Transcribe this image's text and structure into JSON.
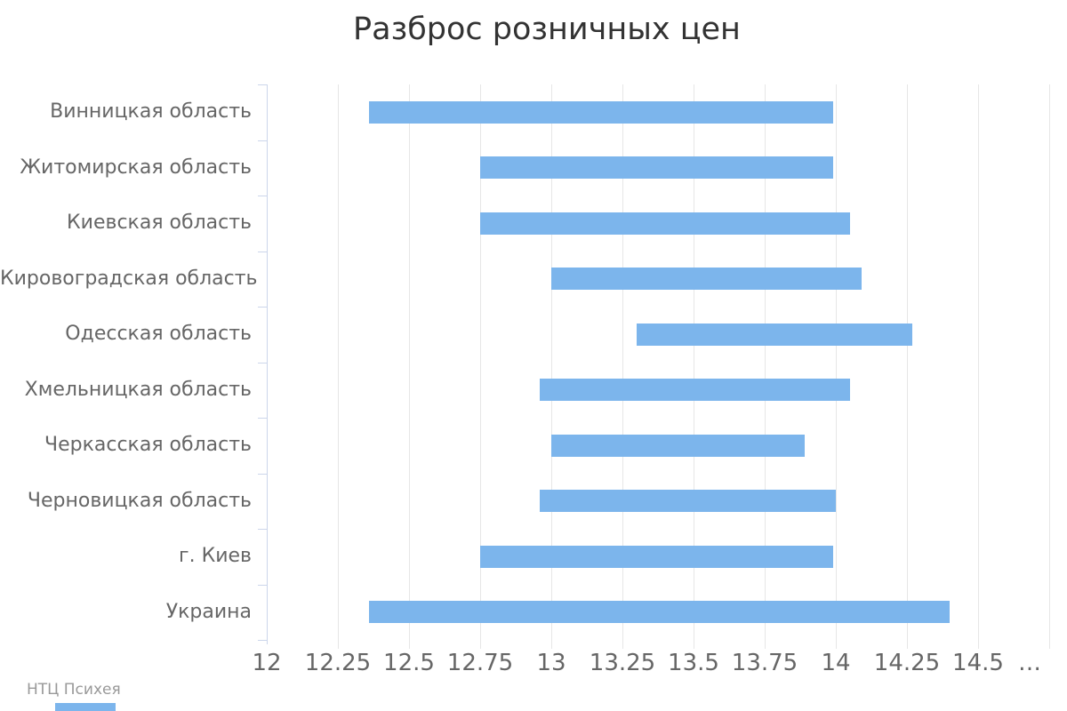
{
  "chart_data": {
    "type": "bar",
    "subtype": "horizontal-range (columnrange)",
    "title": "Разброс розничных цен",
    "categories": [
      "Винницкая область",
      "Житомирская область",
      "Киевская область",
      "Кировоградская область",
      "Одесская область",
      "Хмельницкая область",
      "Черкасская область",
      "Черновицкая область",
      "г. Киев",
      "Украина"
    ],
    "ranges": [
      [
        12.36,
        13.99
      ],
      [
        12.75,
        13.99
      ],
      [
        12.75,
        14.05
      ],
      [
        13.0,
        14.09
      ],
      [
        13.3,
        14.27
      ],
      [
        12.96,
        14.05
      ],
      [
        13.0,
        13.89
      ],
      [
        12.96,
        14.0
      ],
      [
        12.75,
        13.99
      ],
      [
        12.36,
        14.4
      ]
    ],
    "xlabel": "",
    "ylabel": "",
    "xlim": [
      12,
      14.75
    ],
    "x_tick_values": [
      12,
      12.25,
      12.5,
      12.75,
      13,
      13.25,
      13.5,
      13.75,
      14,
      14.25,
      14.5,
      14.75
    ],
    "x_tick_labels": [
      "12",
      "12.25",
      "12.5",
      "12.75",
      "13",
      "13.25",
      "13.5",
      "13.75",
      "14",
      "14.25",
      "14.5",
      "…"
    ],
    "grid": true,
    "legend": false,
    "credits": "НТЦ Психея"
  },
  "colors": {
    "bar": "#7cb5ec",
    "grid": "#e6e6e6",
    "axis_line": "#ccd6eb",
    "title": "#333333",
    "axis_labels": "#666666",
    "credits": "#999999",
    "background": "#ffffff"
  }
}
